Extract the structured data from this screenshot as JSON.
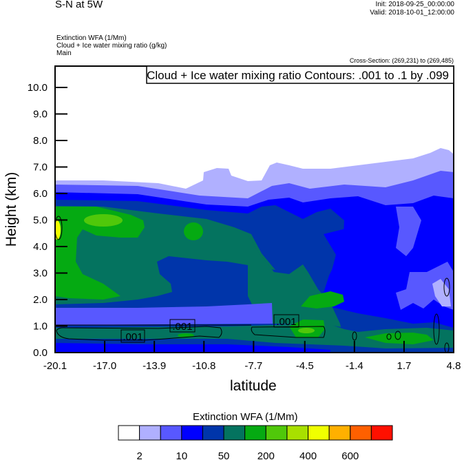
{
  "header": {
    "title": "S-N at 5W",
    "init": "Init: 2018-09-25_00:00:00",
    "valid": "Valid: 2018-10-01_12:00:00",
    "subtitles": [
      "Extinction WFA   (1/Mm)",
      "Cloud + Ice water mixing ratio   (g/kg)",
      "Main"
    ],
    "cross_section": "Cross-Section: (269,231) to (269,485)"
  },
  "chart_data": {
    "type": "heatmap",
    "subtype": "filled contour cross-section with line contours",
    "contour_legend": "Cloud + Ice water mixing ratio Contours: .001 to .1 by .099",
    "xlabel": "latitude",
    "ylabel": "Height (km)",
    "xlim": [
      -20.1,
      4.8
    ],
    "ylim": [
      0,
      10.8
    ],
    "x_ticks": [
      "-20.1",
      "-17.0",
      "-13.9",
      "-10.8",
      "-7.7",
      "-4.5",
      "-1.4",
      "1.7",
      "4.8"
    ],
    "y_ticks": [
      "0.0",
      "1.0",
      "2.0",
      "3.0",
      "4.0",
      "5.0",
      "6.0",
      "7.0",
      "8.0",
      "9.0",
      "10.0"
    ],
    "contour_labels": [
      ".001",
      ".001",
      ".001"
    ],
    "colorbar": {
      "title": "Extinction WFA  (1/Mm)",
      "labels": [
        "2",
        "10",
        "50",
        "200",
        "400",
        "600"
      ],
      "colors": [
        "#ffffff",
        "#b0b0ff",
        "#5858ff",
        "#0000ff",
        "#0035aa",
        "#04735f",
        "#05aa12",
        "#50c80a",
        "#a8e000",
        "#f0ff00",
        "#ffb000",
        "#ff6000",
        "#ff1000"
      ]
    },
    "grid": false
  }
}
